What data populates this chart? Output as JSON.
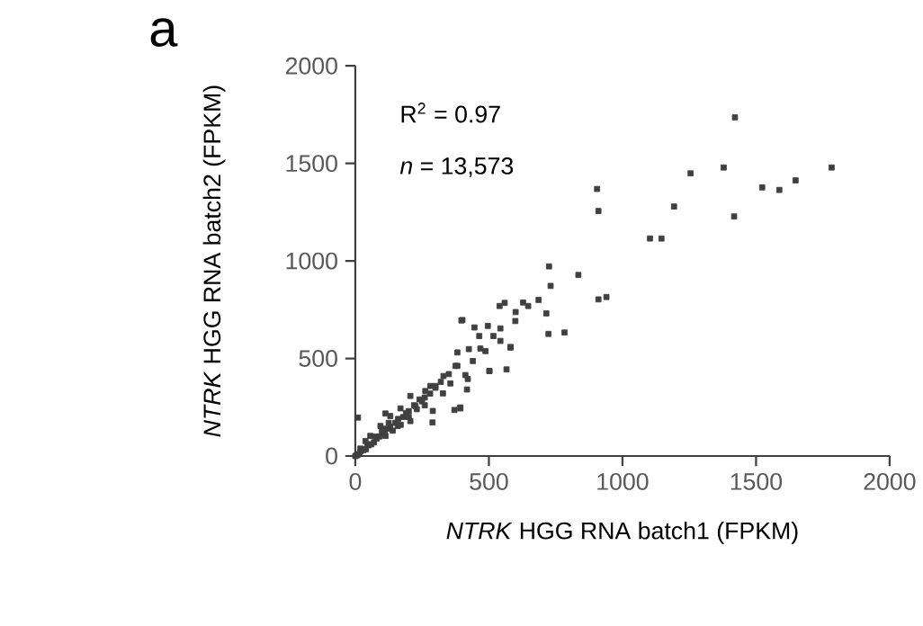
{
  "chart_data": {
    "type": "scatter",
    "title": "a",
    "xlabel": "*NTRK* HGG RNA batch1 (FPKM)",
    "ylabel": "*NTRK* HGG RNA batch2 (FPKM)",
    "annotations": [
      "R$^{2}$ = 0.97",
      "*n* = 13,573"
    ],
    "xlim": [
      0,
      2000
    ],
    "ylim": [
      0,
      2000
    ],
    "xticks": [
      0,
      500,
      1000,
      1500,
      2000
    ],
    "yticks": [
      0,
      500,
      1000,
      1500,
      2000
    ],
    "marker": "square",
    "color": "#404040",
    "x": [
      1421,
      1783,
      1379,
      1255,
      1648,
      1523,
      1587,
      905,
      910,
      1193,
      1418,
      1103,
      1146,
      725,
      835,
      731,
      910,
      940,
      686,
      540,
      559,
      628,
      647,
      600,
      715,
      723,
      783,
      401,
      581,
      566,
      502,
      393,
      371,
      10,
      418,
      289,
      397,
      446,
      496,
      464,
      517,
      543,
      581,
      425,
      382,
      382,
      440,
      502,
      412,
      330,
      300,
      328,
      262,
      206,
      225,
      169,
      131,
      113,
      94,
      159,
      206,
      56,
      38,
      113,
      19,
      0,
      281,
      356,
      393,
      290,
      487,
      543,
      468,
      599,
      375,
      421,
      50,
      80,
      100,
      120,
      150,
      180,
      200,
      250,
      280,
      30,
      60,
      10,
      5,
      15,
      40,
      70,
      90,
      110,
      130,
      160,
      190,
      220,
      240,
      260,
      300,
      320,
      350,
      20,
      45,
      75,
      100,
      125,
      140,
      170,
      200,
      230,
      260
    ],
    "values": [
      1736,
      1479,
      1479,
      1449,
      1413,
      1377,
      1364,
      1369,
      1256,
      1279,
      1228,
      1115,
      1115,
      972,
      928,
      872,
      803,
      815,
      800,
      769,
      785,
      787,
      769,
      738,
      731,
      626,
      633,
      697,
      556,
      444,
      436,
      249,
      236,
      197,
      341,
      172,
      695,
      659,
      667,
      615,
      615,
      654,
      559,
      548,
      531,
      462,
      487,
      436,
      415,
      410,
      359,
      321,
      333,
      308,
      256,
      244,
      205,
      218,
      154,
      154,
      179,
      103,
      77,
      103,
      38,
      0,
      359,
      372,
      244,
      231,
      538,
      590,
      551,
      692,
      462,
      395,
      55,
      90,
      115,
      140,
      170,
      200,
      230,
      280,
      320,
      30,
      60,
      8,
      3,
      10,
      35,
      70,
      100,
      120,
      150,
      190,
      220,
      260,
      290,
      300,
      350,
      380,
      420,
      25,
      60,
      100,
      140,
      170,
      130,
      160,
      200,
      240,
      260
    ]
  }
}
